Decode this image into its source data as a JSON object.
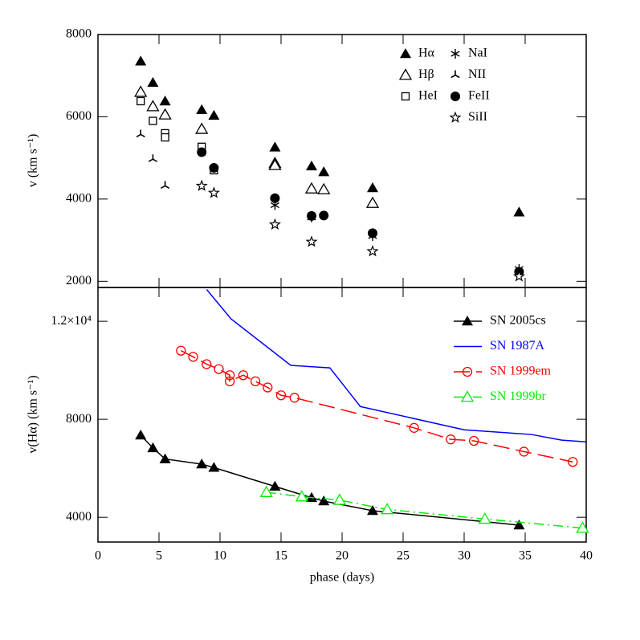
{
  "chart_data": [
    {
      "type": "scatter",
      "ylabel": "v (km s⁻¹)",
      "xlim": [
        0,
        40
      ],
      "ylim": [
        1850,
        8000
      ],
      "yticks": [
        2000,
        4000,
        6000,
        8000
      ],
      "series": [
        {
          "name": "Hα",
          "color": "#000000",
          "marker": "filled-triangle",
          "x": [
            3.5,
            4.5,
            5.5,
            8.5,
            9.5,
            14.5,
            17.5,
            18.5,
            22.5,
            34.5
          ],
          "values": [
            7350,
            6830,
            6380,
            6170,
            6030,
            5260,
            4800,
            4660,
            4270,
            3680
          ]
        },
        {
          "name": "Hβ",
          "color": "#000000",
          "marker": "open-triangle",
          "x": [
            3.5,
            4.5,
            5.5,
            8.5,
            14.5,
            14.5,
            17.5,
            18.5,
            22.5
          ],
          "values": [
            6600,
            6250,
            6050,
            5700,
            4870,
            4820,
            4250,
            4230,
            3900
          ]
        },
        {
          "name": "HeI",
          "color": "#000000",
          "marker": "open-square",
          "x": [
            3.5,
            4.5,
            5.5,
            5.5,
            8.5,
            9.5
          ],
          "values": [
            6380,
            5900,
            5600,
            5500,
            5270,
            4700
          ]
        },
        {
          "name": "NaI",
          "color": "#000000",
          "marker": "asterisk",
          "x": [
            14.5,
            17.5,
            22.5,
            34.5
          ],
          "values": [
            3850,
            3550,
            3100,
            2300
          ]
        },
        {
          "name": "NII",
          "color": "#000000",
          "marker": "tri",
          "x": [
            3.5,
            4.5,
            5.5
          ],
          "values": [
            5570,
            4970,
            4320
          ]
        },
        {
          "name": "FeII",
          "color": "#000000",
          "marker": "filled-circle",
          "x": [
            8.5,
            9.5,
            14.5,
            17.5,
            18.5,
            22.5,
            34.5
          ],
          "values": [
            5140,
            4760,
            4020,
            3590,
            3600,
            3170,
            2230
          ]
        },
        {
          "name": "SiII",
          "color": "#000000",
          "marker": "star",
          "x": [
            8.5,
            9.5,
            14.5,
            17.5,
            22.5,
            34.5
          ],
          "values": [
            4320,
            4150,
            3380,
            2960,
            2730,
            2120
          ]
        }
      ]
    },
    {
      "type": "line",
      "xlabel": "phase (days)",
      "ylabel": "v(Hα) (km s⁻¹)",
      "xlim": [
        0,
        40
      ],
      "xticks": [
        0,
        5,
        10,
        15,
        20,
        25,
        30,
        35,
        40
      ],
      "ylim": [
        2990,
        13380
      ],
      "yticks": [
        4000,
        8000,
        {
          "value": 12000,
          "label": "1.2×10⁴"
        }
      ],
      "series": [
        {
          "name": "SN 2005cs",
          "color": "#000000",
          "marker": "filled-triangle",
          "linestyle": "solid",
          "x": [
            3.5,
            4.5,
            5.5,
            8.5,
            9.5,
            14.5,
            17.5,
            18.5,
            22.5,
            34.5
          ],
          "values": [
            7350,
            6830,
            6380,
            6170,
            6030,
            5260,
            4800,
            4660,
            4270,
            3680
          ]
        },
        {
          "name": "SN 1987A",
          "color": "#0000ff",
          "linestyle": "solid",
          "x": [
            8.9,
            10.9,
            15.8,
            19,
            21.5,
            30,
            35.5,
            38,
            40
          ],
          "values": [
            13300,
            12100,
            10200,
            10100,
            8520,
            7570,
            7380,
            7150,
            7080
          ]
        },
        {
          "name": "SN 1999em",
          "color": "#ff0000",
          "marker": "open-circle",
          "linestyle": "dashed",
          "x": [
            6.8,
            7.8,
            8.9,
            9.9,
            10.8,
            10.8,
            11.9,
            12.9,
            13.9,
            15,
            16.1,
            25.9,
            28.9,
            30.8,
            34.9,
            38.9
          ],
          "values": [
            10800,
            10550,
            10250,
            10050,
            9800,
            9550,
            9800,
            9550,
            9300,
            8980,
            8880,
            7650,
            7180,
            7120,
            6680,
            6260
          ]
        },
        {
          "name": "SN 1999br",
          "color": "#00ee00",
          "marker": "open-triangle",
          "linestyle": "dashdot",
          "x": [
            13.8,
            16.7,
            19.8,
            23.7,
            31.7,
            39.7
          ],
          "values": [
            5020,
            4840,
            4700,
            4320,
            3930,
            3560
          ]
        }
      ]
    }
  ]
}
